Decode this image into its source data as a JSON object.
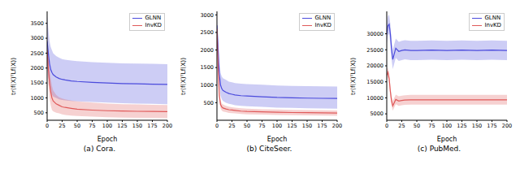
{
  "chart_data": [
    {
      "type": "line",
      "title": "(a) Cora.",
      "x_label": "Epoch",
      "y_label": "tr(f(X)ᵀLf(X))",
      "legend": "upper right",
      "x": [
        0,
        2,
        4,
        6,
        8,
        10,
        15,
        20,
        25,
        30,
        40,
        50,
        75,
        100,
        125,
        150,
        175,
        200
      ],
      "xlim": [
        0,
        200
      ],
      "xticks": [
        0,
        25,
        50,
        75,
        100,
        125,
        150,
        175,
        200
      ],
      "ylim": [
        250,
        3900
      ],
      "yticks": [
        500,
        1000,
        1500,
        2000,
        2500,
        3000,
        3500
      ],
      "series": [
        {
          "name": "GLNN",
          "color": "#4b4bdc",
          "values": [
            2900,
            2500,
            2150,
            1950,
            1850,
            1780,
            1700,
            1650,
            1620,
            1600,
            1570,
            1550,
            1520,
            1500,
            1480,
            1470,
            1460,
            1450
          ],
          "upper": [
            3750,
            3300,
            2900,
            2700,
            2600,
            2500,
            2400,
            2350,
            2300,
            2280,
            2250,
            2230,
            2200,
            2180,
            2160,
            2150,
            2140,
            2130
          ],
          "lower": [
            2050,
            1700,
            1400,
            1200,
            1100,
            1050,
            1000,
            950,
            930,
            920,
            900,
            880,
            860,
            840,
            820,
            810,
            800,
            790
          ]
        },
        {
          "name": "InvKD",
          "color": "#e05a5a",
          "values": [
            2600,
            2000,
            1500,
            1200,
            1000,
            900,
            800,
            750,
            700,
            680,
            650,
            620,
            590,
            570,
            560,
            550,
            545,
            540
          ],
          "upper": [
            3000,
            2500,
            2000,
            1650,
            1400,
            1250,
            1100,
            1020,
            980,
            950,
            910,
            880,
            840,
            810,
            790,
            780,
            770,
            760
          ],
          "lower": [
            2200,
            1500,
            1000,
            750,
            600,
            550,
            500,
            480,
            450,
            430,
            410,
            390,
            370,
            350,
            340,
            330,
            325,
            320
          ]
        }
      ]
    },
    {
      "type": "line",
      "title": "(b) CiteSeer.",
      "x_label": "Epoch",
      "y_label": "tr(f(X)ᵀLf(X))",
      "legend": "upper right",
      "x": [
        0,
        2,
        4,
        6,
        8,
        10,
        15,
        20,
        25,
        30,
        40,
        50,
        75,
        100,
        125,
        150,
        175,
        200
      ],
      "xlim": [
        0,
        200
      ],
      "xticks": [
        0,
        25,
        50,
        75,
        100,
        125,
        150,
        175,
        200
      ],
      "ylim": [
        0,
        3100
      ],
      "yticks": [
        500,
        1000,
        1500,
        2000,
        2500,
        3000
      ],
      "series": [
        {
          "name": "GLNN",
          "color": "#4b4bdc",
          "values": [
            2700,
            2000,
            1300,
            1000,
            900,
            850,
            800,
            760,
            740,
            720,
            700,
            690,
            670,
            650,
            640,
            630,
            625,
            620
          ],
          "upper": [
            2900,
            2300,
            1650,
            1350,
            1250,
            1200,
            1150,
            1100,
            1080,
            1060,
            1040,
            1030,
            1010,
            990,
            980,
            970,
            965,
            960
          ],
          "lower": [
            2500,
            1700,
            1000,
            700,
            600,
            550,
            500,
            470,
            450,
            430,
            410,
            400,
            380,
            360,
            350,
            340,
            335,
            330
          ]
        },
        {
          "name": "InvKD",
          "color": "#e05a5a",
          "values": [
            2600,
            1500,
            700,
            450,
            380,
            350,
            320,
            300,
            290,
            280,
            260,
            250,
            240,
            230,
            220,
            215,
            210,
            205
          ],
          "upper": [
            2700,
            1700,
            850,
            560,
            480,
            450,
            410,
            390,
            370,
            360,
            340,
            330,
            315,
            305,
            295,
            290,
            285,
            280
          ],
          "lower": [
            2500,
            1300,
            550,
            340,
            280,
            250,
            230,
            210,
            200,
            195,
            180,
            170,
            160,
            150,
            145,
            140,
            135,
            130
          ]
        }
      ]
    },
    {
      "type": "line",
      "title": "(c) PubMed.",
      "x_label": "Epoch",
      "y_label": "tr(f(X)ᵀLf(X))",
      "legend": "upper right",
      "x": [
        0,
        2,
        4,
        6,
        8,
        10,
        15,
        20,
        25,
        30,
        40,
        50,
        75,
        100,
        125,
        150,
        175,
        200
      ],
      "xlim": [
        0,
        200
      ],
      "xticks": [
        0,
        25,
        50,
        75,
        100,
        125,
        150,
        175,
        200
      ],
      "ylim": [
        3000,
        37000
      ],
      "yticks": [
        5000,
        10000,
        15000,
        20000,
        25000,
        30000
      ],
      "series": [
        {
          "name": "GLNN",
          "color": "#4b4bdc",
          "values": [
            30000,
            32500,
            33000,
            30000,
            25000,
            22000,
            25500,
            24500,
            24800,
            25000,
            24800,
            24800,
            24900,
            24800,
            24900,
            24800,
            24900,
            24800
          ],
          "upper": [
            33000,
            35500,
            36000,
            33000,
            28000,
            25000,
            28500,
            27500,
            27800,
            28000,
            27800,
            27800,
            27900,
            27800,
            27900,
            27800,
            27900,
            27800
          ],
          "lower": [
            27000,
            29500,
            30000,
            27000,
            22000,
            19000,
            22500,
            21500,
            21800,
            22000,
            21800,
            21800,
            21900,
            21800,
            21900,
            21800,
            21900,
            21800
          ]
        },
        {
          "name": "InvKD",
          "color": "#e05a5a",
          "values": [
            17000,
            18000,
            16000,
            12000,
            9000,
            7500,
            9500,
            9000,
            9200,
            9300,
            9400,
            9400,
            9400,
            9400,
            9400,
            9400,
            9400,
            9400
          ],
          "upper": [
            18500,
            19500,
            17500,
            13500,
            10500,
            9000,
            11000,
            10500,
            10700,
            10800,
            10900,
            10900,
            10900,
            10900,
            10900,
            10900,
            10900,
            10900
          ],
          "lower": [
            15500,
            16500,
            14500,
            10500,
            7500,
            6000,
            8000,
            7500,
            7700,
            7800,
            7900,
            7900,
            7900,
            7900,
            7900,
            7900,
            7900,
            7900
          ]
        }
      ]
    }
  ]
}
